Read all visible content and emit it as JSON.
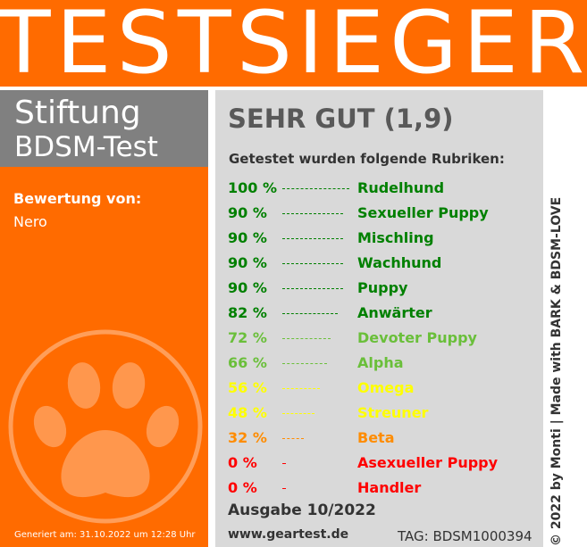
{
  "banner": {
    "title": "TESTSIEGER"
  },
  "brand": {
    "line1": "Stiftung",
    "line2": "BDSM-Test"
  },
  "rating": {
    "label": "Bewertung von:",
    "name": "Nero"
  },
  "generated": "Generiert am: 31.10.2022 um 12:28 Uhr",
  "grade": "SEHR GUT (1,9)",
  "subtitle": "Getestet wurden folgende Rubriken:",
  "categories": [
    {
      "pct": "100 %",
      "name": "Rudelhund",
      "value": 100,
      "color": "#008000"
    },
    {
      "pct": "90 %",
      "name": "Sexueller Puppy",
      "value": 90,
      "color": "#008000"
    },
    {
      "pct": "90 %",
      "name": "Mischling",
      "value": 90,
      "color": "#008000"
    },
    {
      "pct": "90 %",
      "name": "Wachhund",
      "value": 90,
      "color": "#008000"
    },
    {
      "pct": "90 %",
      "name": "Puppy",
      "value": 90,
      "color": "#008000"
    },
    {
      "pct": "82 %",
      "name": "Anwärter",
      "value": 82,
      "color": "#008000"
    },
    {
      "pct": "72 %",
      "name": "Devoter Puppy",
      "value": 72,
      "color": "#6abf3a"
    },
    {
      "pct": "66 %",
      "name": "Alpha",
      "value": 66,
      "color": "#6abf3a"
    },
    {
      "pct": "56 %",
      "name": "Omega",
      "value": 56,
      "color": "#ffff00"
    },
    {
      "pct": "48 %",
      "name": "Streuner",
      "value": 48,
      "color": "#ffff00"
    },
    {
      "pct": "32 %",
      "name": "Beta",
      "value": 32,
      "color": "#ff8c00"
    },
    {
      "pct": "0 %",
      "name": "Asexueller Puppy",
      "value": 0,
      "color": "#ff0000"
    },
    {
      "pct": "0 %",
      "name": "Handler",
      "value": 0,
      "color": "#ff0000"
    }
  ],
  "issue": "Ausgabe 10/2022",
  "website": "www.geartest.de",
  "tag": "TAG: BDSM1000394",
  "copyright": "© 2022 by Monti | Made with BARK & BDSM-LOVE",
  "colors": {
    "orange": "#ff6b00",
    "gray_box": "#808080",
    "panel": "#d9d9d9"
  },
  "icons": {
    "paw": "paw-print-icon"
  }
}
